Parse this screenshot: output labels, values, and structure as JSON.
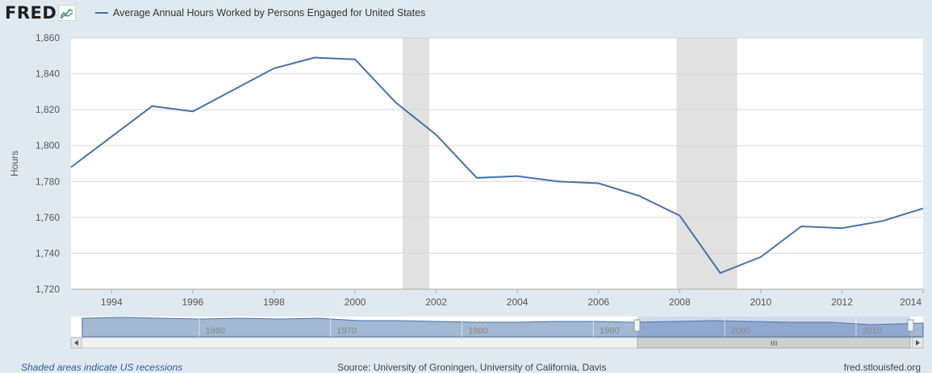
{
  "header": {
    "logo_text": "FRED",
    "legend_label": "Average Annual Hours Worked by Persons Engaged for United States"
  },
  "chart_data": {
    "type": "line",
    "title": "Average Annual Hours Worked by Persons Engaged for United States",
    "ylabel": "Hours",
    "xlabel": "",
    "xlim": [
      1993,
      2014
    ],
    "ylim": [
      1720,
      1860
    ],
    "x_ticks": [
      1994,
      1996,
      1998,
      2000,
      2002,
      2004,
      2006,
      2008,
      2010,
      2012,
      2014
    ],
    "y_ticks": [
      1720,
      1740,
      1760,
      1780,
      1800,
      1820,
      1840,
      1860
    ],
    "y_tick_labels": [
      "1,720",
      "1,740",
      "1,760",
      "1,780",
      "1,800",
      "1,820",
      "1,840",
      "1,860"
    ],
    "grid": true,
    "color": "#4572a7",
    "series": [
      {
        "name": "Average Annual Hours Worked by Persons Engaged for United States",
        "x": [
          1993,
          1994,
          1995,
          1996,
          1997,
          1998,
          1999,
          2000,
          2001,
          2002,
          2003,
          2004,
          2005,
          2006,
          2007,
          2008,
          2009,
          2010,
          2011,
          2012,
          2013,
          2014
        ],
        "values": [
          1788,
          1805,
          1822,
          1819,
          1831,
          1843,
          1849,
          1848,
          1824,
          1806,
          1782,
          1783,
          1780,
          1779,
          1772,
          1761,
          1729,
          1738,
          1755,
          1754,
          1758,
          1765
        ]
      }
    ],
    "recessions": [
      [
        2001.17,
        2001.83
      ],
      [
        2007.92,
        2009.42
      ]
    ]
  },
  "navigator": {
    "labels": [
      "1960",
      "1970",
      "1980",
      "1990",
      "2000",
      "2010"
    ]
  },
  "footer": {
    "recession_note": "Shaded areas indicate US recessions",
    "source": "Source: University of Groningen, University of California, Davis",
    "site": "fred.stlouisfed.org"
  }
}
